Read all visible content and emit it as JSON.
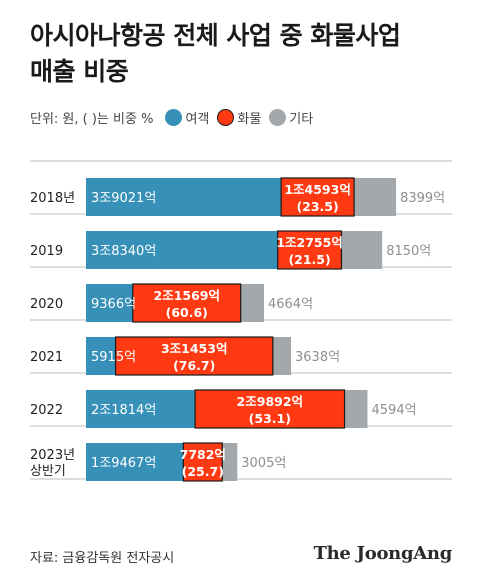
{
  "title_line1": "아시아나항공 전체 사업 중 화물사업",
  "title_line2": "매출 비중",
  "unit_note": "단위: 원, ( )는 비중 %",
  "source": "자료: 금융감독원 전자공시",
  "brand": "The JoongAng",
  "colors": {
    "passenger": "#3690b8",
    "cargo": "#ff3a12",
    "other": "#a3a8ad"
  },
  "chart_data": {
    "type": "bar",
    "orientation": "horizontal",
    "stacked": true,
    "categories": [
      "2018년",
      "2019",
      "2020",
      "2021",
      "2022",
      "2023년\n상반기"
    ],
    "units": "억원",
    "legend_position": "top-left",
    "grid": false,
    "series": [
      {
        "name": "여객",
        "values": [
          39021,
          38340,
          9366,
          5915,
          21814,
          19467
        ],
        "labels": [
          "3조9021억",
          "3조8340억",
          "9366억",
          "5915억",
          "2조1814억",
          "1조9467억"
        ]
      },
      {
        "name": "화물",
        "values": [
          14593,
          12755,
          21569,
          31453,
          29892,
          7782
        ],
        "labels": [
          "1조4593억",
          "1조2755억",
          "2조1569억",
          "3조1453억",
          "2조9892억",
          "7782억"
        ],
        "share_labels": [
          "(23.5)",
          "(21.5)",
          "(60.6)",
          "(76.7)",
          "(53.1)",
          "(25.7)"
        ]
      },
      {
        "name": "기타",
        "values": [
          8399,
          8150,
          4664,
          3638,
          4594,
          3005
        ],
        "labels": [
          "8399억",
          "8150억",
          "4664억",
          "3638억",
          "4594억",
          "3005억"
        ]
      }
    ]
  }
}
